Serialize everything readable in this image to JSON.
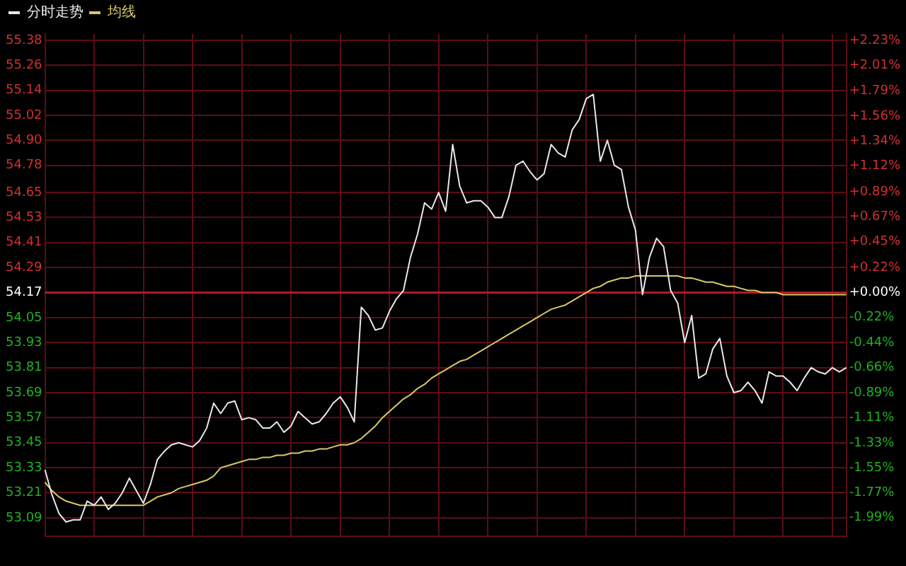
{
  "chart_data": {
    "type": "line",
    "legend": "top left",
    "grid": true,
    "marker": "none",
    "line_style": "solid",
    "categories": [
      null,
      null,
      null,
      null,
      null,
      null,
      null,
      null,
      null,
      null,
      null,
      null,
      null,
      null,
      null,
      null,
      null,
      null,
      null,
      null,
      null,
      null,
      null,
      null,
      null,
      null,
      null,
      null,
      null,
      null,
      null,
      null,
      null,
      null,
      null,
      null,
      null,
      null,
      null,
      null,
      null,
      null,
      null,
      null,
      null,
      null,
      null,
      null,
      null,
      null,
      null,
      null,
      null,
      null,
      null,
      null,
      null,
      null,
      null,
      null,
      null,
      null,
      null,
      null,
      null,
      null,
      null,
      null,
      null,
      null,
      null,
      null,
      null,
      null,
      null,
      null,
      null,
      null,
      null,
      null,
      null,
      null,
      null,
      null,
      null,
      null,
      null,
      null,
      null,
      null,
      null,
      null,
      null,
      null,
      null,
      null,
      null,
      null,
      null,
      null,
      null,
      null,
      null,
      null,
      null,
      null,
      null,
      null,
      null,
      null,
      null,
      null,
      null,
      null,
      null
    ],
    "series": [
      {
        "name": "分时走势",
        "color": "#e8e8e8",
        "values": [
          53.32,
          53.2,
          53.11,
          53.07,
          53.08,
          53.08,
          53.17,
          53.15,
          53.19,
          53.13,
          53.16,
          53.21,
          53.28,
          53.22,
          53.16,
          53.25,
          53.37,
          53.41,
          53.44,
          53.45,
          53.44,
          53.43,
          53.46,
          53.52,
          53.64,
          53.59,
          53.64,
          53.65,
          53.56,
          53.57,
          53.56,
          53.52,
          53.52,
          53.55,
          53.5,
          53.53,
          53.6,
          53.57,
          53.54,
          53.55,
          53.59,
          53.64,
          53.67,
          53.62,
          53.55,
          54.1,
          54.06,
          53.99,
          54.0,
          54.08,
          54.14,
          54.18,
          54.34,
          54.45,
          54.6,
          54.57,
          54.65,
          54.56,
          54.88,
          54.68,
          54.6,
          54.61,
          54.61,
          54.58,
          54.53,
          54.53,
          54.63,
          54.78,
          54.8,
          54.75,
          54.71,
          54.74,
          54.88,
          54.84,
          54.82,
          54.95,
          55.0,
          55.1,
          55.12,
          54.8,
          54.9,
          54.78,
          54.76,
          54.58,
          54.47,
          54.16,
          54.34,
          54.43,
          54.39,
          54.18,
          54.12,
          53.93,
          54.06,
          53.76,
          53.78,
          53.9,
          53.95,
          53.77,
          53.69,
          53.7,
          53.74,
          53.7,
          53.64,
          53.79,
          53.77,
          53.77,
          53.74,
          53.7,
          53.76,
          53.81,
          53.79,
          53.78,
          53.81,
          53.79,
          53.81
        ]
      },
      {
        "name": "均线",
        "color": "#d8c868",
        "values": [
          53.26,
          53.22,
          53.19,
          53.17,
          53.16,
          53.15,
          53.15,
          53.15,
          53.15,
          53.15,
          53.15,
          53.15,
          53.15,
          53.15,
          53.15,
          53.17,
          53.19,
          53.2,
          53.21,
          53.23,
          53.24,
          53.25,
          53.26,
          53.27,
          53.29,
          53.33,
          53.34,
          53.35,
          53.36,
          53.37,
          53.37,
          53.38,
          53.38,
          53.39,
          53.39,
          53.4,
          53.4,
          53.41,
          53.41,
          53.42,
          53.42,
          53.43,
          53.44,
          53.44,
          53.45,
          53.47,
          53.5,
          53.53,
          53.57,
          53.6,
          53.63,
          53.66,
          53.68,
          53.71,
          53.73,
          53.76,
          53.78,
          53.8,
          53.82,
          53.84,
          53.85,
          53.87,
          53.89,
          53.91,
          53.93,
          53.95,
          53.97,
          53.99,
          54.01,
          54.03,
          54.05,
          54.07,
          54.09,
          54.1,
          54.11,
          54.13,
          54.15,
          54.17,
          54.19,
          54.2,
          54.22,
          54.23,
          54.24,
          54.24,
          54.25,
          54.25,
          54.25,
          54.25,
          54.25,
          54.25,
          54.25,
          54.24,
          54.24,
          54.23,
          54.22,
          54.22,
          54.21,
          54.2,
          54.2,
          54.19,
          54.18,
          54.18,
          54.17,
          54.17,
          54.17,
          54.16,
          54.16,
          54.16,
          54.16,
          54.16,
          54.16,
          54.16,
          54.16,
          54.16,
          54.16
        ]
      }
    ],
    "ylim": [
      53.0,
      55.41
    ],
    "yticks": [
      {
        "value": 55.38,
        "label": "55.38"
      },
      {
        "value": 55.26,
        "label": "55.26"
      },
      {
        "value": 55.14,
        "label": "55.14"
      },
      {
        "value": 55.02,
        "label": "55.02"
      },
      {
        "value": 54.9,
        "label": "54.90"
      },
      {
        "value": 54.78,
        "label": "54.78"
      },
      {
        "value": 54.65,
        "label": "54.65"
      },
      {
        "value": 54.53,
        "label": "54.53"
      },
      {
        "value": 54.41,
        "label": "54.41"
      },
      {
        "value": 54.29,
        "label": "54.29"
      },
      {
        "value": 54.17,
        "label": "54.17"
      },
      {
        "value": 54.05,
        "label": "54.05"
      },
      {
        "value": 53.93,
        "label": "53.93"
      },
      {
        "value": 53.81,
        "label": "53.81"
      },
      {
        "value": 53.69,
        "label": "53.69"
      },
      {
        "value": 53.57,
        "label": "53.57"
      },
      {
        "value": 53.45,
        "label": "53.45"
      },
      {
        "value": 53.33,
        "label": "53.33"
      },
      {
        "value": 53.21,
        "label": "53.21"
      },
      {
        "value": 53.09,
        "label": "53.09"
      }
    ],
    "y2lim": [
      -2.16,
      2.29
    ],
    "y2ticks": [
      {
        "value": 2.23,
        "label": "+2.23%"
      },
      {
        "value": 2.01,
        "label": "+2.01%"
      },
      {
        "value": 1.79,
        "label": "+1.79%"
      },
      {
        "value": 1.56,
        "label": "+1.56%"
      },
      {
        "value": 1.34,
        "label": "+1.34%"
      },
      {
        "value": 1.12,
        "label": "+1.12%"
      },
      {
        "value": 0.89,
        "label": "+0.89%"
      },
      {
        "value": 0.67,
        "label": "+0.67%"
      },
      {
        "value": 0.45,
        "label": "+0.45%"
      },
      {
        "value": 0.22,
        "label": "+0.22%"
      },
      {
        "value": 0,
        "label": "+0.00%"
      },
      {
        "value": -0.22,
        "label": "-0.22%"
      },
      {
        "value": -0.44,
        "label": "-0.44%"
      },
      {
        "value": -0.66,
        "label": "-0.66%"
      },
      {
        "value": -0.89,
        "label": "-0.89%"
      },
      {
        "value": -1.11,
        "label": "-1.11%"
      },
      {
        "value": -1.33,
        "label": "-1.33%"
      },
      {
        "value": -1.55,
        "label": "-1.55%"
      },
      {
        "value": -1.77,
        "label": "-1.77%"
      },
      {
        "value": -1.99,
        "label": "-1.99%"
      }
    ],
    "ref_lines": [
      {
        "axis": "y",
        "value": 54.17,
        "color": "#c0202c"
      }
    ]
  }
}
